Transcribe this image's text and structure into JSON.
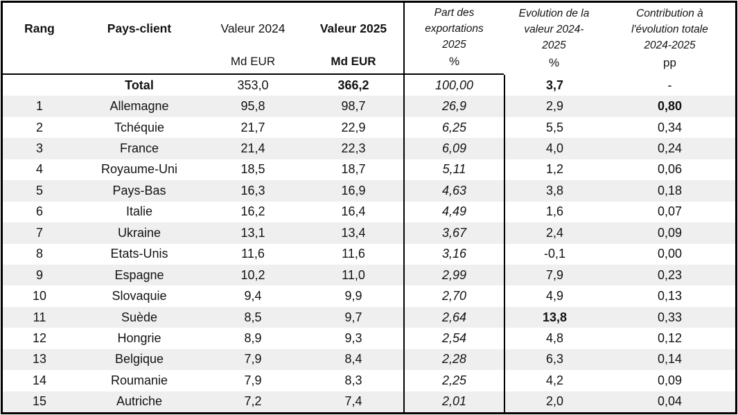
{
  "colors": {
    "row_shade": "#efefef",
    "border": "#000000",
    "text": "#121212"
  },
  "table": {
    "columns": [
      {
        "id": "rank",
        "label": "Rang",
        "unit": ""
      },
      {
        "id": "country",
        "label": "Pays-client",
        "unit": ""
      },
      {
        "id": "v2024",
        "label": "Valeur 2024",
        "unit": "Md EUR"
      },
      {
        "id": "v2025",
        "label": "Valeur 2025",
        "unit": "Md EUR"
      },
      {
        "id": "part",
        "label": "Part des exportations 2025",
        "unit": "%"
      },
      {
        "id": "evol",
        "label": "Evolution de la valeur 2024-2025",
        "unit": "%"
      },
      {
        "id": "contrib",
        "label": "Contribution à l'évolution totale 2024-2025",
        "unit": "pp"
      }
    ],
    "rows": [
      {
        "rank": "",
        "country": "Total",
        "v2024": "353,0",
        "v2025": "366,2",
        "part": "100,00",
        "evol": "3,7",
        "contrib": "-",
        "bold": [
          "country",
          "v2025",
          "evol"
        ],
        "shaded": false
      },
      {
        "rank": "1",
        "country": "Allemagne",
        "v2024": "95,8",
        "v2025": "98,7",
        "part": "26,9",
        "evol": "2,9",
        "contrib": "0,80",
        "bold": [
          "contrib"
        ],
        "shaded": true
      },
      {
        "rank": "2",
        "country": "Tchéquie",
        "v2024": "21,7",
        "v2025": "22,9",
        "part": "6,25",
        "evol": "5,5",
        "contrib": "0,34",
        "bold": [],
        "shaded": false
      },
      {
        "rank": "3",
        "country": "France",
        "v2024": "21,4",
        "v2025": "22,3",
        "part": "6,09",
        "evol": "4,0",
        "contrib": "0,24",
        "bold": [],
        "shaded": true
      },
      {
        "rank": "4",
        "country": "Royaume-Uni",
        "v2024": "18,5",
        "v2025": "18,7",
        "part": "5,11",
        "evol": "1,2",
        "contrib": "0,06",
        "bold": [],
        "shaded": false
      },
      {
        "rank": "5",
        "country": "Pays-Bas",
        "v2024": "16,3",
        "v2025": "16,9",
        "part": "4,63",
        "evol": "3,8",
        "contrib": "0,18",
        "bold": [],
        "shaded": true
      },
      {
        "rank": "6",
        "country": "Italie",
        "v2024": "16,2",
        "v2025": "16,4",
        "part": "4,49",
        "evol": "1,6",
        "contrib": "0,07",
        "bold": [],
        "shaded": false
      },
      {
        "rank": "7",
        "country": "Ukraine",
        "v2024": "13,1",
        "v2025": "13,4",
        "part": "3,67",
        "evol": "2,4",
        "contrib": "0,09",
        "bold": [],
        "shaded": true
      },
      {
        "rank": "8",
        "country": "Etats-Unis",
        "v2024": "11,6",
        "v2025": "11,6",
        "part": "3,16",
        "evol": "-0,1",
        "contrib": "0,00",
        "bold": [],
        "shaded": false
      },
      {
        "rank": "9",
        "country": "Espagne",
        "v2024": "10,2",
        "v2025": "11,0",
        "part": "2,99",
        "evol": "7,9",
        "contrib": "0,23",
        "bold": [],
        "shaded": true
      },
      {
        "rank": "10",
        "country": "Slovaquie",
        "v2024": "9,4",
        "v2025": "9,9",
        "part": "2,70",
        "evol": "4,9",
        "contrib": "0,13",
        "bold": [],
        "shaded": false
      },
      {
        "rank": "11",
        "country": "Suède",
        "v2024": "8,5",
        "v2025": "9,7",
        "part": "2,64",
        "evol": "13,8",
        "contrib": "0,33",
        "bold": [
          "evol"
        ],
        "shaded": true
      },
      {
        "rank": "12",
        "country": "Hongrie",
        "v2024": "8,9",
        "v2025": "9,3",
        "part": "2,54",
        "evol": "4,8",
        "contrib": "0,12",
        "bold": [],
        "shaded": false
      },
      {
        "rank": "13",
        "country": "Belgique",
        "v2024": "7,9",
        "v2025": "8,4",
        "part": "2,28",
        "evol": "6,3",
        "contrib": "0,14",
        "bold": [],
        "shaded": true
      },
      {
        "rank": "14",
        "country": "Roumanie",
        "v2024": "7,9",
        "v2025": "8,3",
        "part": "2,25",
        "evol": "4,2",
        "contrib": "0,09",
        "bold": [],
        "shaded": false
      },
      {
        "rank": "15",
        "country": "Autriche",
        "v2024": "7,2",
        "v2025": "7,4",
        "part": "2,01",
        "evol": "2,0",
        "contrib": "0,04",
        "bold": [],
        "shaded": true
      }
    ]
  },
  "chart_data": {
    "type": "table",
    "title": "",
    "columns": [
      "Rang",
      "Pays-client",
      "Valeur 2024 (Md EUR)",
      "Valeur 2025 (Md EUR)",
      "Part des exportations 2025 (%)",
      "Evolution de la valeur 2024-2025 (%)",
      "Contribution à l'évolution totale 2024-2025 (pp)"
    ],
    "rows": [
      [
        "",
        "Total",
        353.0,
        366.2,
        100.0,
        3.7,
        null
      ],
      [
        1,
        "Allemagne",
        95.8,
        98.7,
        26.9,
        2.9,
        0.8
      ],
      [
        2,
        "Tchéquie",
        21.7,
        22.9,
        6.25,
        5.5,
        0.34
      ],
      [
        3,
        "France",
        21.4,
        22.3,
        6.09,
        4.0,
        0.24
      ],
      [
        4,
        "Royaume-Uni",
        18.5,
        18.7,
        5.11,
        1.2,
        0.06
      ],
      [
        5,
        "Pays-Bas",
        16.3,
        16.9,
        4.63,
        3.8,
        0.18
      ],
      [
        6,
        "Italie",
        16.2,
        16.4,
        4.49,
        1.6,
        0.07
      ],
      [
        7,
        "Ukraine",
        13.1,
        13.4,
        3.67,
        2.4,
        0.09
      ],
      [
        8,
        "Etats-Unis",
        11.6,
        11.6,
        3.16,
        -0.1,
        0.0
      ],
      [
        9,
        "Espagne",
        10.2,
        11.0,
        2.99,
        7.9,
        0.23
      ],
      [
        10,
        "Slovaquie",
        9.4,
        9.9,
        2.7,
        4.9,
        0.13
      ],
      [
        11,
        "Suède",
        8.5,
        9.7,
        2.64,
        13.8,
        0.33
      ],
      [
        12,
        "Hongrie",
        8.9,
        9.3,
        2.54,
        4.8,
        0.12
      ],
      [
        13,
        "Belgique",
        7.9,
        8.4,
        2.28,
        6.3,
        0.14
      ],
      [
        14,
        "Roumanie",
        7.9,
        8.3,
        2.25,
        4.2,
        0.09
      ],
      [
        15,
        "Autriche",
        7.2,
        7.4,
        2.01,
        2.0,
        0.04
      ]
    ]
  }
}
